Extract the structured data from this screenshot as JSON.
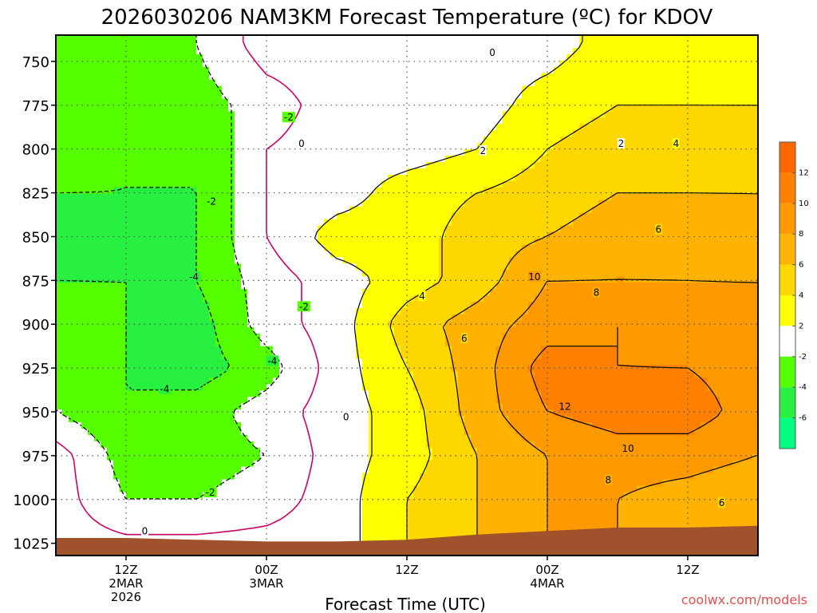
{
  "chart_data": {
    "type": "heatmap",
    "title": "2026030206 NAM3KM Forecast Temperature (ºC) for KDOV",
    "xlabel": "Forecast Time (UTC)",
    "ylabel": "",
    "credit": "coolwx.com/models",
    "y_axis": {
      "ticks": [
        750,
        775,
        800,
        825,
        850,
        875,
        900,
        925,
        950,
        975,
        1000,
        1025
      ],
      "range": [
        735,
        1032
      ]
    },
    "x_axis": {
      "ticks": [
        {
          "hour": 6,
          "label": "12Z",
          "sub": [
            "2MAR",
            "2026"
          ]
        },
        {
          "hour": 18,
          "label": "00Z",
          "sub": [
            "3MAR"
          ]
        },
        {
          "hour": 30,
          "label": "12Z",
          "sub": []
        },
        {
          "hour": 42,
          "label": "00Z",
          "sub": [
            "4MAR"
          ]
        },
        {
          "hour": 54,
          "label": "12Z",
          "sub": []
        }
      ],
      "range": [
        0,
        60
      ]
    },
    "colorbar": [
      {
        "from": -8,
        "to": -6,
        "color": "#00ff80"
      },
      {
        "from": -6,
        "to": -4,
        "color": "#28f040"
      },
      {
        "from": -4,
        "to": -2,
        "color": "#55ff00"
      },
      {
        "from": -2,
        "to": 2,
        "color": "#ffffff"
      },
      {
        "from": 2,
        "to": 4,
        "color": "#ffff00"
      },
      {
        "from": 4,
        "to": 6,
        "color": "#ffd700"
      },
      {
        "from": 6,
        "to": 8,
        "color": "#ffb300"
      },
      {
        "from": 8,
        "to": 10,
        "color": "#ff9900"
      },
      {
        "from": 10,
        "to": 12,
        "color": "#ff8000"
      },
      {
        "from": 12,
        "to": 14,
        "color": "#ff6600"
      }
    ],
    "colorbar_labels": [
      12,
      10,
      8,
      6,
      4,
      2,
      -2,
      -4,
      -6
    ],
    "temperature_field": {
      "x_hours": [
        0,
        6,
        12,
        18,
        24,
        30,
        36,
        42,
        48,
        54,
        60
      ],
      "pressure": [
        740,
        775,
        800,
        825,
        850,
        875,
        900,
        925,
        950,
        975,
        1000,
        1030
      ],
      "values": [
        [
          -2,
          -3,
          -2,
          1,
          1,
          1,
          1,
          1,
          3,
          3,
          2
        ],
        [
          -3,
          -3,
          -3,
          -1,
          1,
          1,
          1,
          3,
          4,
          4,
          4
        ],
        [
          -3,
          -4,
          -4,
          0,
          1,
          1,
          2,
          4,
          5,
          5,
          5
        ],
        [
          -4,
          -4,
          -4,
          0,
          1,
          3,
          4,
          5,
          6,
          6,
          6
        ],
        [
          -5,
          -5,
          -4,
          0,
          3,
          3,
          5,
          6,
          7,
          7,
          6
        ],
        [
          -4,
          -4,
          -4,
          -1,
          1,
          3,
          5,
          8,
          8,
          8,
          8
        ],
        [
          -3,
          -4,
          -5,
          -1,
          1,
          5,
          7,
          9,
          10,
          9,
          8
        ],
        [
          -2,
          -4,
          -5,
          -3,
          1,
          4,
          7,
          11,
          10,
          10,
          9
        ],
        [
          -2,
          -4,
          -3,
          -1,
          1,
          3,
          7,
          10,
          11,
          11,
          9
        ],
        [
          1,
          -3,
          -3,
          -2,
          1,
          3,
          6,
          8,
          9,
          9,
          8
        ],
        [
          1,
          -2,
          -2,
          -1,
          1,
          4,
          6,
          8,
          8,
          7,
          6
        ],
        [
          1,
          1,
          1,
          1,
          1,
          4,
          6,
          8,
          8,
          8,
          7
        ]
      ]
    },
    "contour_labels": [
      {
        "value": "0",
        "hour": 37.3,
        "p": 745
      },
      {
        "value": "-2",
        "hour": 19.9,
        "p": 782
      },
      {
        "value": "0",
        "hour": 21.0,
        "p": 797
      },
      {
        "value": "2",
        "hour": 36.5,
        "p": 801
      },
      {
        "value": "2",
        "hour": 48.3,
        "p": 797
      },
      {
        "value": "4",
        "hour": 53.0,
        "p": 797
      },
      {
        "value": "-2",
        "hour": 13.3,
        "p": 830
      },
      {
        "value": "6",
        "hour": 51.5,
        "p": 846
      },
      {
        "value": "-4",
        "hour": 11.8,
        "p": 873
      },
      {
        "value": "4",
        "hour": 31.3,
        "p": 884
      },
      {
        "value": "10",
        "hour": 40.9,
        "p": 873
      },
      {
        "value": "8",
        "hour": 46.2,
        "p": 882
      },
      {
        "value": "-2",
        "hour": 21.2,
        "p": 890
      },
      {
        "value": "6",
        "hour": 34.9,
        "p": 908
      },
      {
        "value": "-4",
        "hour": 18.5,
        "p": 921
      },
      {
        "value": "-4",
        "hour": 9.3,
        "p": 937
      },
      {
        "value": "12",
        "hour": 43.5,
        "p": 947
      },
      {
        "value": "0",
        "hour": 24.8,
        "p": 953
      },
      {
        "value": "10",
        "hour": 48.9,
        "p": 971
      },
      {
        "value": "-2",
        "hour": 13.2,
        "p": 996
      },
      {
        "value": "8",
        "hour": 47.2,
        "p": 989
      },
      {
        "value": "6",
        "hour": 56.9,
        "p": 1002
      },
      {
        "value": "0",
        "hour": 7.6,
        "p": 1018
      }
    ]
  },
  "colors": {
    "ground": "#a0522d",
    "neg_contour": "#000000",
    "zero_contour": "#cc0066",
    "pos_contour": "#000000",
    "grid": "#555555"
  }
}
